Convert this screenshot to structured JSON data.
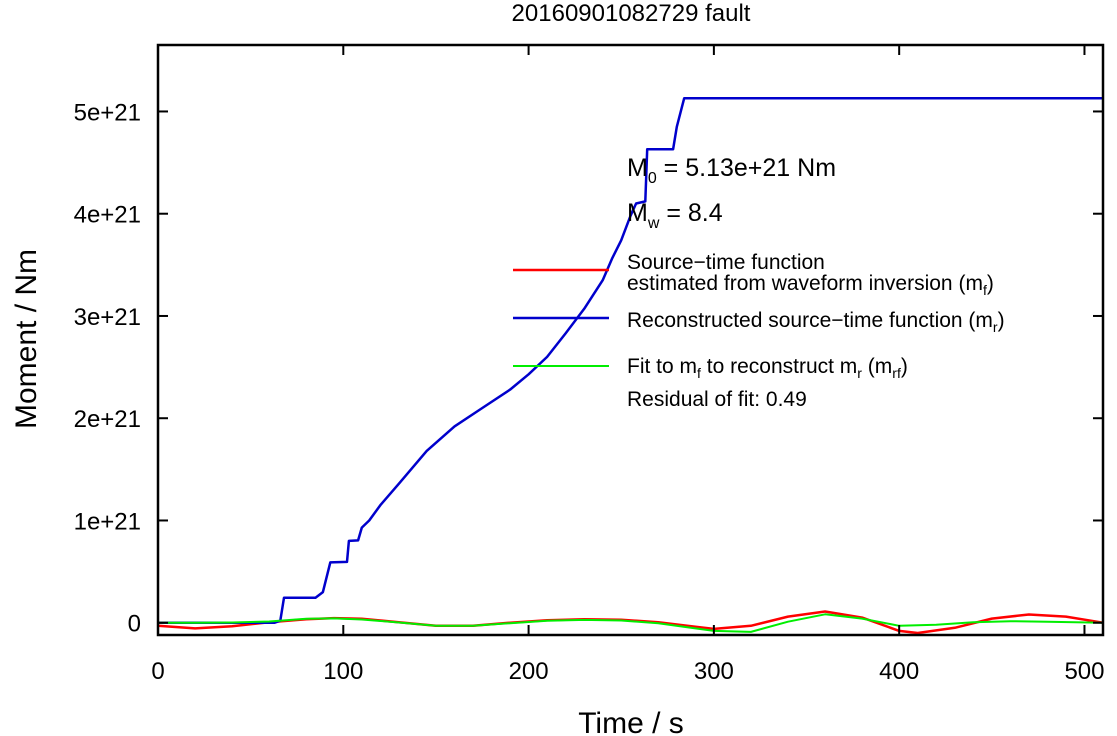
{
  "chart_data": {
    "type": "line",
    "title": "20160901082729 fault",
    "xlabel": "Time / s",
    "ylabel": "Moment / Nm",
    "xlim": [
      0,
      510
    ],
    "ylim": [
      -1.2e+20,
      5.65e+21
    ],
    "x_ticks": [
      0,
      100,
      200,
      300,
      400,
      500
    ],
    "x_tick_labels": [
      "0",
      "100",
      "200",
      "300",
      "400",
      "500"
    ],
    "y_ticks": [
      0,
      1e+21,
      2e+21,
      3e+21,
      4e+21,
      5e+21
    ],
    "y_tick_labels": [
      "0",
      "1e+21",
      "2e+21",
      "3e+21",
      "4e+21",
      "5e+21"
    ],
    "grid": false,
    "legend_position": "right",
    "annotations": {
      "m0": {
        "base": "M",
        "sub": "0",
        "text": " = 5.13e+21 Nm"
      },
      "mw": {
        "base": "M",
        "sub": "w",
        "text": " = 8.4"
      },
      "residual": "Residual of fit: 0.49"
    },
    "legend": [
      {
        "color": "#ff0000",
        "line1": "Source−time function",
        "line2_pre": "estimated from waveform inversion (m",
        "line2_sub": "f",
        "line2_post": ")"
      },
      {
        "color": "#0000cc",
        "line1_pre": "Reconstructed source−time function (m",
        "line1_sub": "r",
        "line1_post": ")"
      },
      {
        "color": "#00ee00",
        "p1": "Fit to m",
        "s1": "f",
        "p2": " to reconstruct m",
        "s2": "r",
        "p3": " (m",
        "s3": "rf",
        "p4": ")"
      }
    ],
    "series": [
      {
        "name": "Source−time function estimated from waveform inversion (mf)",
        "color": "#ff0000",
        "x": [
          0,
          20,
          40,
          60,
          80,
          95,
          110,
          130,
          150,
          170,
          190,
          210,
          230,
          250,
          270,
          290,
          300,
          320,
          340,
          360,
          380,
          400,
          410,
          430,
          450,
          470,
          490,
          510
        ],
        "y": [
          -3e+19,
          -5.5e+19,
          -3.5e+19,
          5e+18,
          3.5e+19,
          4.5e+19,
          3.8e+19,
          5e+18,
          -3e+19,
          -3e+19,
          0,
          2.5e+19,
          3.5e+19,
          3e+19,
          5e+18,
          -4e+19,
          -6e+19,
          -3e+19,
          6e+19,
          1.1e+20,
          5e+19,
          -8e+19,
          -1e+20,
          -5e+19,
          4e+19,
          8e+19,
          6e+19,
          0
        ]
      },
      {
        "name": "Reconstructed source−time function (mr)",
        "color": "#0000cc",
        "x": [
          0,
          63,
          66,
          68,
          85,
          89,
          93,
          102,
          103,
          108,
          110,
          114,
          120,
          130,
          145,
          160,
          175,
          190,
          200,
          210,
          220,
          230,
          240,
          245,
          250,
          255,
          258,
          263,
          264,
          278,
          280,
          284,
          290,
          510
        ],
        "y": [
          0,
          0,
          2e+19,
          2.45e+20,
          2.45e+20,
          3e+20,
          5.9e+20,
          5.95e+20,
          8e+20,
          8.05e+20,
          9.3e+20,
          1e+21,
          1.15e+21,
          1.36e+21,
          1.68e+21,
          1.92e+21,
          2.1e+21,
          2.28e+21,
          2.43e+21,
          2.6e+21,
          2.83e+21,
          3.07e+21,
          3.35e+21,
          3.56e+21,
          3.74e+21,
          3.98e+21,
          4.1e+21,
          4.12e+21,
          4.63e+21,
          4.63e+21,
          4.85e+21,
          5.13e+21,
          5.13e+21,
          5.13e+21
        ]
      },
      {
        "name": "Fit to mf to reconstruct mr (mrf)",
        "color": "#00ee00",
        "x": [
          0,
          20,
          40,
          60,
          80,
          95,
          110,
          130,
          150,
          170,
          190,
          210,
          230,
          250,
          270,
          290,
          300,
          320,
          340,
          360,
          380,
          400,
          420,
          440,
          460,
          480,
          510
        ],
        "y": [
          0,
          0,
          2e+18,
          1.2e+19,
          3.8e+19,
          4.2e+19,
          3.2e+19,
          2e+18,
          -3e+19,
          -3e+19,
          -5e+18,
          2e+19,
          2.8e+19,
          2.2e+19,
          -5e+18,
          -5.5e+19,
          -8e+19,
          -9e+19,
          1e+19,
          8.2e+19,
          4e+19,
          -3e+19,
          -2e+19,
          5e+18,
          1.5e+19,
          1e+19,
          0
        ]
      }
    ]
  }
}
